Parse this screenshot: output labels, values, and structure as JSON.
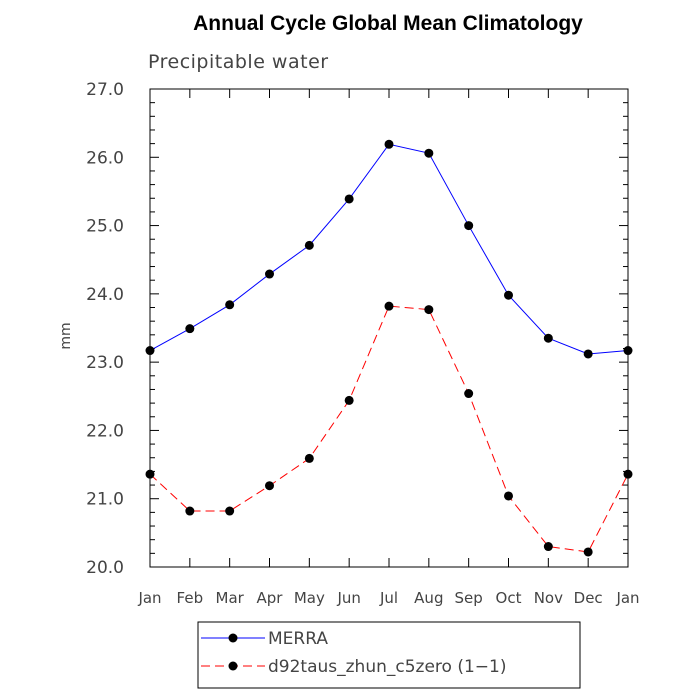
{
  "chart_data": {
    "type": "line",
    "title": "Annual Cycle Global Mean Climatology",
    "subtitle": "Precipitable water",
    "xlabel": "",
    "ylabel": "mm",
    "categories": [
      "Jan",
      "Feb",
      "Mar",
      "Apr",
      "May",
      "Jun",
      "Jul",
      "Aug",
      "Sep",
      "Oct",
      "Nov",
      "Dec",
      "Jan"
    ],
    "ylim": [
      20.0,
      27.0
    ],
    "yticks": [
      "20.0",
      "21.0",
      "22.0",
      "23.0",
      "24.0",
      "25.0",
      "26.0",
      "27.0"
    ],
    "grid": false,
    "legend_position": "bottom",
    "series": [
      {
        "name": "MERRA",
        "color": "#0000ff",
        "dash": "solid",
        "values": [
          23.17,
          23.49,
          23.84,
          24.29,
          24.71,
          25.39,
          26.19,
          26.06,
          25.0,
          23.98,
          23.35,
          23.12,
          23.17
        ]
      },
      {
        "name": "d92taus_zhun_c5zero (1−1)",
        "color": "#ff0000",
        "dash": "dashed",
        "values": [
          21.36,
          20.82,
          20.82,
          21.19,
          21.59,
          22.44,
          23.82,
          23.77,
          22.54,
          21.04,
          20.3,
          20.22,
          21.36
        ]
      }
    ]
  }
}
